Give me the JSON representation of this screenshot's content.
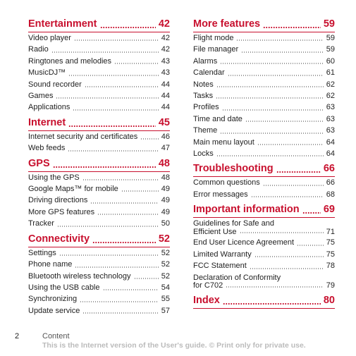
{
  "columns": [
    {
      "sections": [
        {
          "title": "Entertainment",
          "page": "42",
          "entries": [
            {
              "label": "Video player",
              "page": "42"
            },
            {
              "label": "Radio",
              "page": "42"
            },
            {
              "label": "Ringtones and melodies",
              "page": "43"
            },
            {
              "label": "MusicDJ™",
              "page": "43"
            },
            {
              "label": "Sound recorder",
              "page": "44"
            },
            {
              "label": "Games",
              "page": "44"
            },
            {
              "label": "Applications",
              "page": "44"
            }
          ]
        },
        {
          "title": "Internet",
          "page": "45",
          "entries": [
            {
              "label": "Internet security and certificates",
              "page": "46"
            },
            {
              "label": "Web feeds",
              "page": "47"
            }
          ]
        },
        {
          "title": "GPS",
          "page": "48",
          "entries": [
            {
              "label": "Using the GPS",
              "page": "48"
            },
            {
              "label": "Google Maps™ for mobile",
              "page": "49"
            },
            {
              "label": "Driving directions",
              "page": "49"
            },
            {
              "label": "More GPS features",
              "page": "49"
            },
            {
              "label": "Tracker",
              "page": "50"
            }
          ]
        },
        {
          "title": "Connectivity",
          "page": "52",
          "entries": [
            {
              "label": "Settings",
              "page": "52"
            },
            {
              "label": "Phone name",
              "page": "52"
            },
            {
              "label": "Bluetooth wireless technology",
              "page": "52"
            },
            {
              "label": "Using the USB cable",
              "page": "54"
            },
            {
              "label": "Synchronizing",
              "page": "55"
            },
            {
              "label": "Update service",
              "page": "57"
            }
          ]
        }
      ]
    },
    {
      "sections": [
        {
          "title": "More features",
          "page": "59",
          "entries": [
            {
              "label": "Flight mode",
              "page": "59"
            },
            {
              "label": "File manager",
              "page": "59"
            },
            {
              "label": "Alarms",
              "page": "60"
            },
            {
              "label": "Calendar",
              "page": "61"
            },
            {
              "label": "Notes",
              "page": "62"
            },
            {
              "label": "Tasks",
              "page": "62"
            },
            {
              "label": "Profiles",
              "page": "63"
            },
            {
              "label": "Time and date",
              "page": "63"
            },
            {
              "label": "Theme",
              "page": "63"
            },
            {
              "label": "Main menu layout",
              "page": "64"
            },
            {
              "label": "Locks",
              "page": "64"
            }
          ]
        },
        {
          "title": "Troubleshooting",
          "page": "66",
          "entries": [
            {
              "label": "Common questions",
              "page": "66"
            },
            {
              "label": "Error messages",
              "page": "68"
            }
          ]
        },
        {
          "title": "Important information",
          "page": "69",
          "entries": [
            {
              "label_lines": [
                "Guidelines for Safe and",
                "Efficient Use"
              ],
              "page": "71"
            },
            {
              "label": "End User Licence Agreement",
              "page": "75"
            },
            {
              "label": "Limited Warranty",
              "page": "75"
            },
            {
              "label": "FCC Statement",
              "page": "78"
            },
            {
              "label_lines": [
                "Declaration of Conformity",
                "for C702"
              ],
              "page": "79"
            }
          ]
        },
        {
          "title": "Index",
          "page": "80",
          "entries": []
        }
      ]
    }
  ],
  "footer": {
    "page_number": "2",
    "title": "Content",
    "note": "This is the Internet version of the User's guide. © Print only for private use."
  }
}
